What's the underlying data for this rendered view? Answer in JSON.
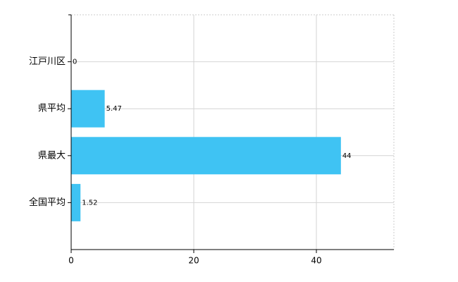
{
  "chart_data": {
    "type": "bar",
    "orientation": "horizontal",
    "categories": [
      "江戸川区",
      "県平均",
      "県最大",
      "全国平均"
    ],
    "values": [
      0,
      5.47,
      44,
      1.52
    ],
    "color": "#3fc3f3",
    "xlim": [
      0,
      52.64
    ],
    "xticks": [
      0,
      20,
      40
    ],
    "grid": true
  }
}
